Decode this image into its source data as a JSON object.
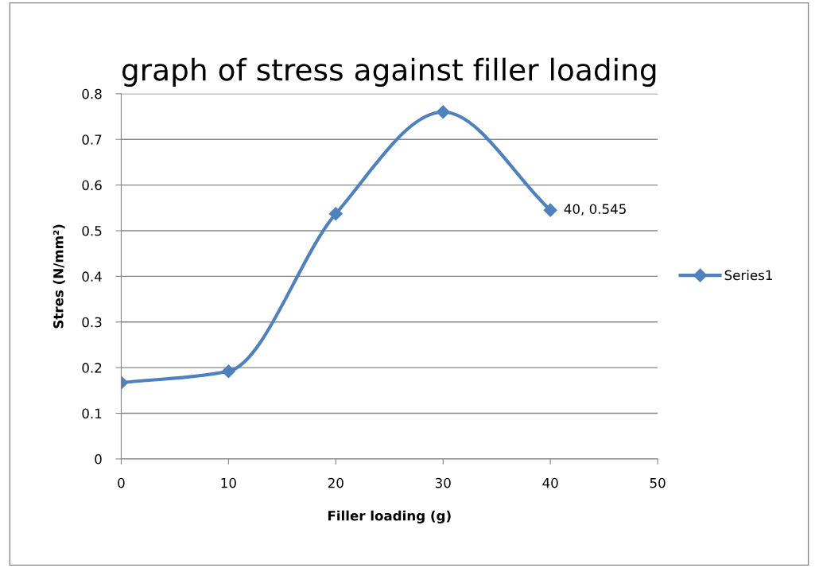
{
  "chart_data": {
    "type": "line",
    "title": "graph of stress against filler loading",
    "xlabel": "Filler loading (g)",
    "ylabel": "Stres (N/mm²)",
    "x": [
      0,
      10,
      20,
      30,
      40
    ],
    "series": [
      {
        "name": "Series1",
        "color": "#4f81bd",
        "values": [
          0.167,
          0.192,
          0.537,
          0.76,
          0.545
        ],
        "value_labels": [
          null,
          null,
          null,
          null,
          "40, 0.545"
        ]
      }
    ],
    "xlim": [
      0,
      50
    ],
    "xticks": [
      0,
      10,
      20,
      30,
      40,
      50
    ],
    "ylim": [
      0,
      0.8
    ],
    "yticks": [
      0,
      0.1,
      0.2,
      0.3,
      0.4,
      0.5,
      0.6,
      0.7,
      0.8
    ],
    "grid": "y",
    "legend": "right",
    "marker": "diamond",
    "line_style": "solid"
  }
}
